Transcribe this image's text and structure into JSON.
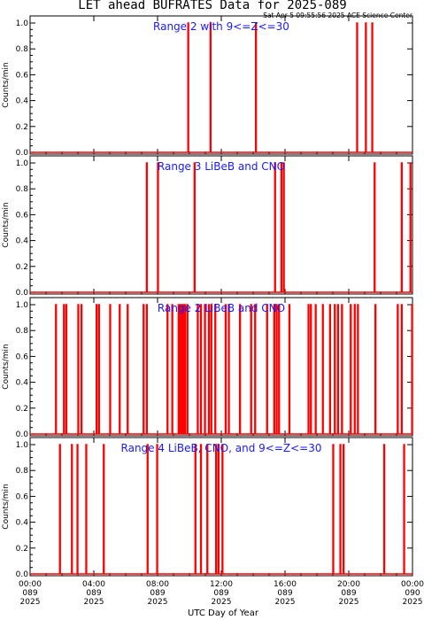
{
  "title": "LET ahead BUFRATES Data for 2025-089",
  "timestamp": "Sat Apr  5 09:55:56 2025 ACE Science Center",
  "xlabel": "UTC Day of Year",
  "colors": {
    "series": "#ff0000",
    "panel_title": "#1a1aff",
    "axes": "#000000"
  },
  "chart_data": {
    "type": "line",
    "x_unit": "UTC hour of day",
    "x_range_hours": [
      0,
      24
    ],
    "x_ticks": [
      {
        "hour": 0,
        "time": "00:00",
        "doy": "089",
        "year": "2025"
      },
      {
        "hour": 4,
        "time": "04:00",
        "doy": "089",
        "year": "2025"
      },
      {
        "hour": 8,
        "time": "08:00",
        "doy": "089",
        "year": "2025"
      },
      {
        "hour": 12,
        "time": "12:00",
        "doy": "089",
        "year": "2025"
      },
      {
        "hour": 16,
        "time": "16:00",
        "doy": "089",
        "year": "2025"
      },
      {
        "hour": 20,
        "time": "20:00",
        "doy": "089",
        "year": "2025"
      },
      {
        "hour": 24,
        "time": "00:00",
        "doy": "090",
        "year": "2025"
      }
    ],
    "y_ticks": [
      "0.0",
      "0.2",
      "0.4",
      "0.6",
      "0.8",
      "1.0"
    ],
    "y_range": [
      0,
      1
    ],
    "panels": [
      {
        "title": "Range 2  with  9<=Z<=30",
        "ylabel": "Counts/min",
        "spikes_hours": [
          9.9,
          11.3,
          14.15,
          20.5,
          21.05,
          21.45
        ]
      },
      {
        "title": "Range 3  LiBeB and CNO",
        "ylabel": "Counts/min",
        "spikes_hours": [
          7.3,
          8.0,
          10.3,
          15.35,
          15.75,
          15.9,
          21.6,
          23.3,
          23.85
        ]
      },
      {
        "title": "Range 2  LiBeB and CNO",
        "ylabel": "Counts/min",
        "spikes_hours": [
          1.6,
          2.1,
          2.25,
          3.0,
          3.2,
          4.15,
          4.3,
          5.0,
          5.6,
          6.1,
          7.1,
          7.3,
          8.6,
          8.9,
          9.3,
          9.4,
          9.5,
          9.6,
          9.7,
          9.85,
          10.5,
          10.7,
          10.95,
          11.2,
          11.35,
          11.6,
          12.25,
          12.45,
          13.15,
          13.85,
          14.1,
          14.85,
          15.3,
          15.45,
          15.6,
          16.25,
          17.45,
          17.6,
          17.9,
          18.35,
          18.8,
          19.1,
          19.3,
          19.55,
          20.1,
          20.35,
          20.55,
          21.65,
          23.05,
          23.3,
          23.95
        ]
      },
      {
        "title": "Range 4  LiBeB, CNO, and 9<=Z<=30",
        "ylabel": "Counts/min",
        "spikes_hours": [
          1.85,
          2.6,
          2.95,
          3.5,
          4.6,
          7.35,
          7.95,
          10.35,
          10.7,
          11.1,
          11.65,
          11.8,
          12.05,
          19.0,
          19.45,
          19.65,
          22.2,
          23.45
        ]
      }
    ]
  }
}
